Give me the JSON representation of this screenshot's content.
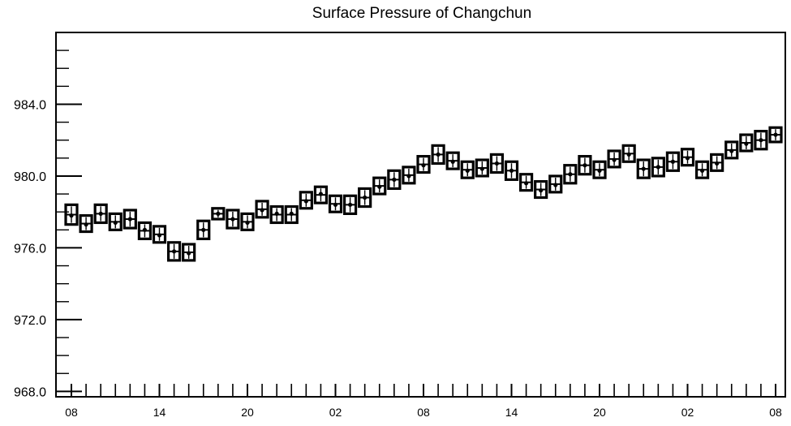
{
  "chart_data": {
    "type": "boxplot",
    "title": "Surface Pressure of Changchun",
    "xlabel": "",
    "ylabel": "",
    "ylim": [
      967.7,
      988.0
    ],
    "y_ticks": [
      968.0,
      972.0,
      976.0,
      980.0,
      984.0
    ],
    "y_tick_labels": [
      "968.0",
      "972.0",
      "976.0",
      "980.0",
      "984.0"
    ],
    "x_tick_labels": [
      "08",
      "14",
      "20",
      "02",
      "08",
      "14",
      "20",
      "02",
      "08"
    ],
    "x_label_every": 6,
    "grid": false,
    "series": [
      {
        "median": [
          977.8,
          977.3,
          977.9,
          977.4,
          977.6,
          977.0,
          976.7,
          975.8,
          975.7,
          977.0,
          977.9,
          977.6,
          977.4,
          978.1,
          977.9,
          977.9,
          978.6,
          979.0,
          978.4,
          978.4,
          978.8,
          979.4,
          979.8,
          980.0,
          980.6,
          981.2,
          980.8,
          980.3,
          980.4,
          980.7,
          980.3,
          979.6,
          979.2,
          979.5,
          980.1,
          980.6,
          980.3,
          980.9,
          981.2,
          980.4,
          980.5,
          980.8,
          981.0,
          980.3,
          980.7,
          981.4,
          981.8,
          982.0,
          982.3
        ],
        "low": [
          977.3,
          976.9,
          977.4,
          977.0,
          977.1,
          976.5,
          976.3,
          975.3,
          975.3,
          976.5,
          977.6,
          977.1,
          977.0,
          977.7,
          977.4,
          977.4,
          978.2,
          978.5,
          978.0,
          977.9,
          978.3,
          979.0,
          979.3,
          979.6,
          980.2,
          980.7,
          980.4,
          979.9,
          980.0,
          980.2,
          979.8,
          979.2,
          978.8,
          979.1,
          979.6,
          980.1,
          979.9,
          980.5,
          980.8,
          979.9,
          980.0,
          980.3,
          980.6,
          979.9,
          980.3,
          981.0,
          981.4,
          981.5,
          981.9
        ],
        "high": [
          978.4,
          977.8,
          978.4,
          977.9,
          978.1,
          977.4,
          977.2,
          976.3,
          976.2,
          977.5,
          978.2,
          978.1,
          977.9,
          978.6,
          978.3,
          978.3,
          979.1,
          979.4,
          978.9,
          978.9,
          979.3,
          979.9,
          980.3,
          980.5,
          981.1,
          981.7,
          981.3,
          980.8,
          980.9,
          981.2,
          980.8,
          980.1,
          979.7,
          980.0,
          980.6,
          981.1,
          980.8,
          981.4,
          981.7,
          980.9,
          981.0,
          981.3,
          981.5,
          980.8,
          981.2,
          981.9,
          982.3,
          982.5,
          982.7
        ]
      }
    ]
  }
}
